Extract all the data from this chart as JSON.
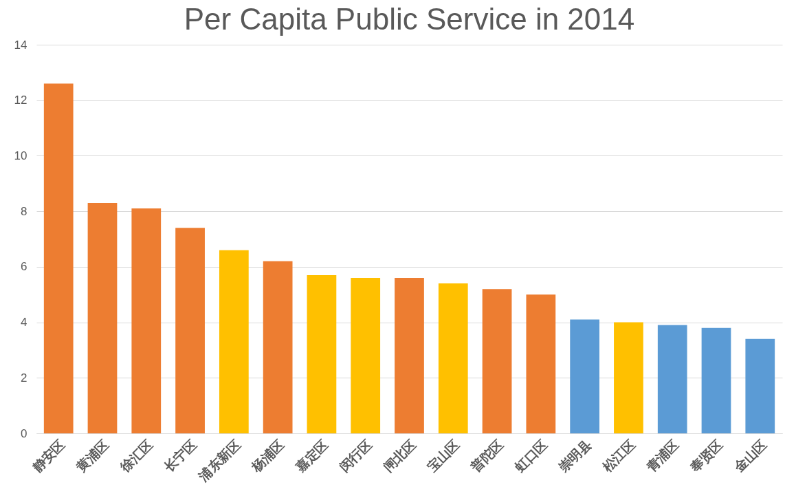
{
  "chart_data": {
    "type": "bar",
    "title": "Per Capita Public Service in 2014",
    "categories": [
      "静安区",
      "黄浦区",
      "徐汇区",
      "长宁区",
      "浦东新区",
      "杨浦区",
      "嘉定区",
      "闵行区",
      "闸北区",
      "宝山区",
      "普陀区",
      "虹口区",
      "崇明县",
      "松江区",
      "青浦区",
      "奉贤区",
      "金山区"
    ],
    "values": [
      12.6,
      8.3,
      8.1,
      7.4,
      6.6,
      6.2,
      5.7,
      5.6,
      5.6,
      5.4,
      5.2,
      5.0,
      4.1,
      4.0,
      3.9,
      3.8,
      3.4
    ],
    "colors": [
      "#ed7d31",
      "#ed7d31",
      "#ed7d31",
      "#ed7d31",
      "#ffc000",
      "#ed7d31",
      "#ffc000",
      "#ffc000",
      "#ed7d31",
      "#ffc000",
      "#ed7d31",
      "#ed7d31",
      "#5b9bd5",
      "#ffc000",
      "#5b9bd5",
      "#5b9bd5",
      "#5b9bd5"
    ],
    "ylim": [
      0,
      14
    ],
    "yticks": [
      0,
      2,
      4,
      6,
      8,
      10,
      12,
      14
    ],
    "grid": "y"
  }
}
